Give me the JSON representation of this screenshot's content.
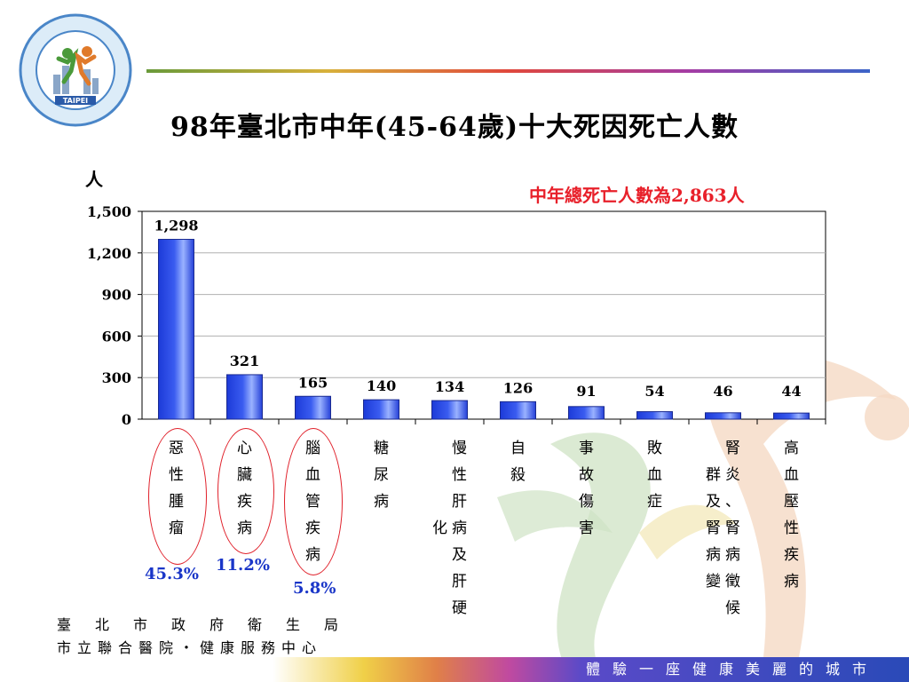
{
  "title": "98年臺北市中年(45-64歲)十大死因死亡人數",
  "y_unit": "人",
  "total_note": "中年總死亡人數為2,863人",
  "chart_data": {
    "type": "bar",
    "categories": [
      "惡性腫瘤",
      "心臟疾病",
      "腦血管疾病",
      "糖尿病",
      "慢性肝病及肝硬化",
      "自殺",
      "事故傷害",
      "敗血症",
      "腎炎、腎病徵候群及腎病變",
      "高血壓性疾病"
    ],
    "values": [
      1298,
      321,
      165,
      140,
      134,
      126,
      91,
      54,
      46,
      44
    ],
    "value_labels": [
      "1,298",
      "321",
      "165",
      "140",
      "134",
      "126",
      "91",
      "54",
      "46",
      "44"
    ],
    "yticks": [
      "0",
      "300",
      "600",
      "900",
      "1,200",
      "1,500"
    ],
    "ylim": [
      0,
      1500
    ],
    "grid": true,
    "bar_color": "#3a5cf0"
  },
  "category_columns": [
    [
      [
        "惡性腫瘤"
      ]
    ],
    [
      [
        "心臟疾病"
      ]
    ],
    [
      [
        "腦血管疾病"
      ]
    ],
    [
      [
        "糖尿病"
      ]
    ],
    [
      [
        "化"
      ],
      [
        "慢性肝病及肝硬"
      ]
    ],
    [
      [
        "自殺"
      ]
    ],
    [
      [
        "事故傷害"
      ]
    ],
    [
      [
        "敗血症"
      ]
    ],
    [
      [
        "群及腎病變"
      ],
      [
        "腎炎、腎病徵候"
      ]
    ],
    [
      [
        "高血壓性疾病"
      ]
    ]
  ],
  "percentages": [
    {
      "label": "45.3%"
    },
    {
      "label": "11.2%"
    },
    {
      "label": "5.8%"
    }
  ],
  "footer": {
    "org_line1": "臺北市政府衛生局",
    "org_line2": "市立聯合醫院・健康服務中心",
    "slogan": "體驗一座健康美麗的城市"
  },
  "logo": {
    "text": "TAIPEI",
    "ring_text": "市立聯合醫院・臺北市政府衛生局・健康服務中心"
  }
}
